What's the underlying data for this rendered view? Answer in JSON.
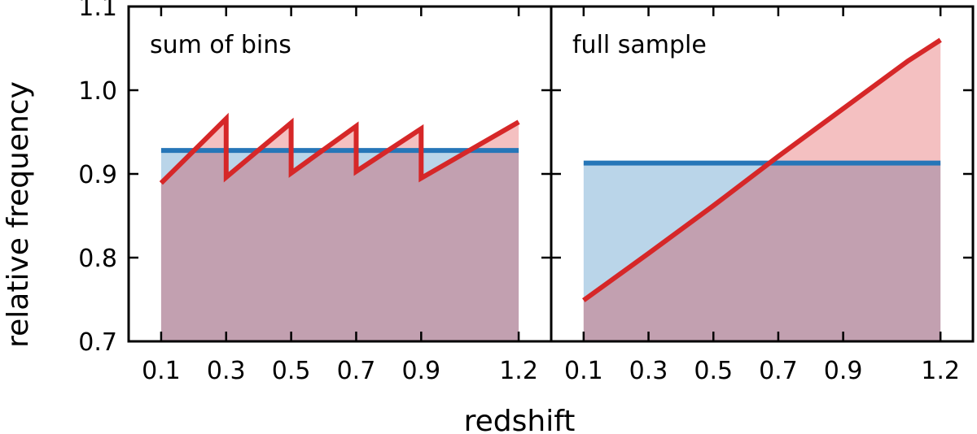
{
  "colors": {
    "blue": "#2676b8",
    "blue_fill": "#bad5e9",
    "red": "#d62728",
    "red_fill": "#f4c0c1",
    "overlap_fill": "#c2a0b0"
  },
  "chart_data": {
    "type": "line",
    "xlabel": "redshift",
    "ylabel": "relative frequency",
    "ylim": [
      0.7,
      1.1
    ],
    "y_ticks": [
      0.7,
      0.8,
      0.9,
      1.0,
      1.1
    ],
    "y_tick_labels": [
      "0.7",
      "0.8",
      "0.9",
      "1.0",
      "1.1"
    ],
    "x_ticks": [
      0.1,
      0.3,
      0.5,
      0.7,
      0.9,
      1.2
    ],
    "x_tick_labels": [
      "0.1",
      "0.3",
      "0.5",
      "0.7",
      "0.9",
      "1.2"
    ],
    "xlim": [
      0.0,
      1.3
    ],
    "grid": false,
    "panels": [
      {
        "title": "sum of bins",
        "series": [
          {
            "color_key": "blue",
            "x": [
              0.1,
              1.2
            ],
            "y": [
              0.928,
              0.928
            ]
          },
          {
            "color_key": "red",
            "x": [
              0.1,
              0.3,
              0.3,
              0.5,
              0.5,
              0.7,
              0.7,
              0.9,
              0.9,
              1.2
            ],
            "y": [
              0.889,
              0.966,
              0.896,
              0.961,
              0.901,
              0.957,
              0.903,
              0.954,
              0.895,
              0.962
            ]
          }
        ]
      },
      {
        "title": "full sample",
        "series": [
          {
            "color_key": "blue",
            "x": [
              0.1,
              1.2
            ],
            "y": [
              0.913,
              0.913
            ]
          },
          {
            "color_key": "red",
            "x": [
              0.1,
              0.3,
              0.5,
              0.7,
              0.9,
              1.1,
              1.2
            ],
            "y": [
              0.749,
              0.805,
              0.862,
              0.921,
              0.978,
              1.035,
              1.06
            ]
          }
        ]
      }
    ]
  }
}
